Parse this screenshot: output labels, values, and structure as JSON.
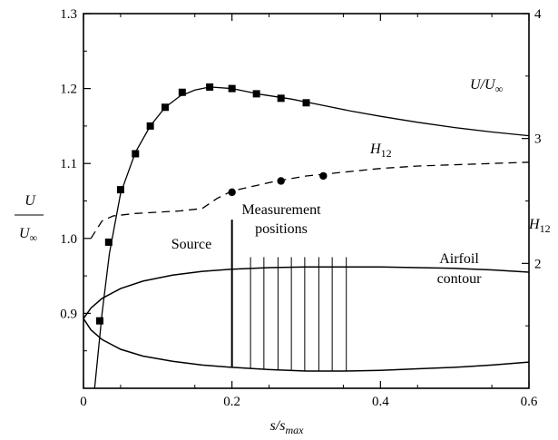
{
  "chart_data": {
    "type": "line",
    "x_axis": {
      "label_main": "s/s",
      "label_sub": "max",
      "range": [
        0,
        0.6
      ],
      "ticks": [
        0,
        0.2,
        0.4,
        0.6
      ],
      "tick_labels": [
        "0",
        "0.2",
        "0.4",
        "0.6"
      ]
    },
    "y_axis_left": {
      "label_numerator": "U",
      "label_denominator_main": "U",
      "label_denominator_sub": "∞",
      "range": [
        0.8,
        1.3
      ],
      "ticks": [
        0.9,
        1.0,
        1.1,
        1.2,
        1.3
      ],
      "tick_labels": [
        "0.9",
        "1.0",
        "1.1",
        "1.2",
        "1.3"
      ]
    },
    "y_axis_right": {
      "label_main": "H",
      "label_sub": "12",
      "range": [
        1,
        4
      ],
      "ticks": [
        2,
        3,
        4
      ],
      "tick_labels": [
        "2",
        "3",
        "4"
      ]
    },
    "series": [
      {
        "name": "U/U∞",
        "label_main": "U/U",
        "label_sub": "∞",
        "axis": "left",
        "style": "solid",
        "curve": [
          [
            0.015,
            0.8
          ],
          [
            0.025,
            0.9
          ],
          [
            0.035,
            0.98
          ],
          [
            0.05,
            1.06
          ],
          [
            0.07,
            1.115
          ],
          [
            0.09,
            1.15
          ],
          [
            0.11,
            1.175
          ],
          [
            0.13,
            1.19
          ],
          [
            0.15,
            1.198
          ],
          [
            0.17,
            1.202
          ],
          [
            0.2,
            1.2
          ],
          [
            0.24,
            1.192
          ],
          [
            0.28,
            1.186
          ],
          [
            0.32,
            1.178
          ],
          [
            0.36,
            1.17
          ],
          [
            0.4,
            1.163
          ],
          [
            0.45,
            1.155
          ],
          [
            0.5,
            1.148
          ],
          [
            0.55,
            1.142
          ],
          [
            0.6,
            1.137
          ]
        ],
        "markers": "square",
        "points": [
          [
            0.022,
            0.89
          ],
          [
            0.034,
            0.995
          ],
          [
            0.05,
            1.065
          ],
          [
            0.07,
            1.113
          ],
          [
            0.09,
            1.15
          ],
          [
            0.11,
            1.175
          ],
          [
            0.133,
            1.195
          ],
          [
            0.17,
            1.202
          ],
          [
            0.2,
            1.2
          ],
          [
            0.233,
            1.193
          ],
          [
            0.266,
            1.187
          ],
          [
            0.3,
            1.181
          ]
        ]
      },
      {
        "name": "H12",
        "label_main": "H",
        "label_sub": "12",
        "axis": "right",
        "style": "dashed",
        "curve": [
          [
            0.01,
            2.2
          ],
          [
            0.025,
            2.34
          ],
          [
            0.04,
            2.38
          ],
          [
            0.07,
            2.4
          ],
          [
            0.1,
            2.41
          ],
          [
            0.13,
            2.42
          ],
          [
            0.16,
            2.44
          ],
          [
            0.18,
            2.52
          ],
          [
            0.2,
            2.58
          ],
          [
            0.23,
            2.62
          ],
          [
            0.26,
            2.66
          ],
          [
            0.3,
            2.7
          ],
          [
            0.35,
            2.73
          ],
          [
            0.4,
            2.76
          ],
          [
            0.45,
            2.78
          ],
          [
            0.5,
            2.79
          ],
          [
            0.55,
            2.8
          ],
          [
            0.6,
            2.81
          ]
        ],
        "markers": "circle",
        "points": [
          [
            0.2,
            2.57
          ],
          [
            0.266,
            2.66
          ],
          [
            0.323,
            2.7
          ]
        ]
      }
    ],
    "airfoil": {
      "upper": [
        [
          0,
          0.893
        ],
        [
          0.01,
          0.907
        ],
        [
          0.025,
          0.92
        ],
        [
          0.05,
          0.933
        ],
        [
          0.08,
          0.943
        ],
        [
          0.12,
          0.951
        ],
        [
          0.16,
          0.956
        ],
        [
          0.2,
          0.959
        ],
        [
          0.25,
          0.961
        ],
        [
          0.3,
          0.962
        ],
        [
          0.35,
          0.962
        ],
        [
          0.4,
          0.962
        ],
        [
          0.45,
          0.961
        ],
        [
          0.5,
          0.96
        ],
        [
          0.55,
          0.958
        ],
        [
          0.6,
          0.955
        ]
      ],
      "lower": [
        [
          0,
          0.893
        ],
        [
          0.01,
          0.878
        ],
        [
          0.025,
          0.865
        ],
        [
          0.05,
          0.852
        ],
        [
          0.08,
          0.843
        ],
        [
          0.12,
          0.836
        ],
        [
          0.16,
          0.831
        ],
        [
          0.2,
          0.828
        ],
        [
          0.25,
          0.825
        ],
        [
          0.3,
          0.823
        ],
        [
          0.35,
          0.823
        ],
        [
          0.4,
          0.824
        ],
        [
          0.45,
          0.826
        ],
        [
          0.5,
          0.828
        ],
        [
          0.55,
          0.831
        ],
        [
          0.6,
          0.835
        ]
      ],
      "label_lines": [
        "Airfoil",
        "contour"
      ]
    },
    "source": {
      "x": 0.2,
      "y_top": 1.025,
      "label": "Source"
    },
    "measurement_positions": {
      "x": [
        0.225,
        0.243,
        0.262,
        0.28,
        0.298,
        0.317,
        0.335,
        0.354
      ],
      "y_top": 0.975,
      "label_lines": [
        "Measurement",
        "positions"
      ]
    },
    "grid": false,
    "legend": "none"
  }
}
